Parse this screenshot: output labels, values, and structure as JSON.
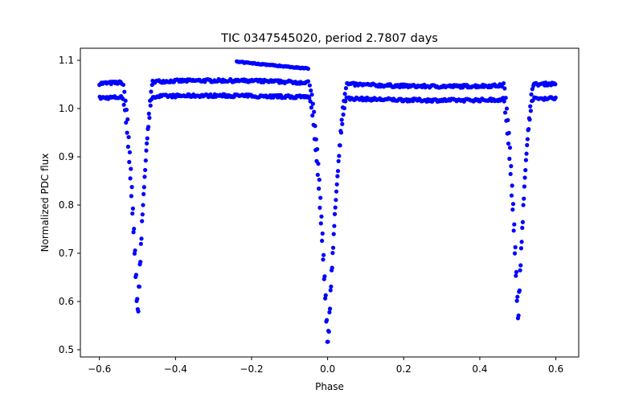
{
  "chart_data": {
    "type": "scatter",
    "title": "TIC 0347545020, period 2.7807 days",
    "xlabel": "Phase",
    "ylabel": "Normalized PDC flux",
    "xlim": [
      -0.65,
      0.66
    ],
    "ylim": [
      0.485,
      1.125
    ],
    "xticks": [
      -0.6,
      -0.4,
      -0.2,
      0.0,
      0.2,
      0.4,
      0.6
    ],
    "xtick_labels": [
      "−0.6",
      "−0.4",
      "−0.2",
      "0.0",
      "0.2",
      "0.4",
      "0.6"
    ],
    "yticks": [
      0.5,
      0.6,
      0.7,
      0.8,
      0.9,
      1.0,
      1.1
    ],
    "ytick_labels": [
      "0.5",
      "0.6",
      "0.7",
      "0.8",
      "0.9",
      "1.0",
      "1.1"
    ],
    "grid": false,
    "legend": "none",
    "marker_color": "#0000ff",
    "phase_range": [
      -0.6,
      0.6
    ],
    "upper_baseline": 1.052,
    "lower_baseline": 1.022,
    "upper_arc_start": 1.097,
    "upper_arc_end": 1.082,
    "eclipses": [
      {
        "center": -0.5,
        "depth_min": 0.565,
        "half_width": 0.04
      },
      {
        "center": 0.0,
        "depth_min": 0.502,
        "half_width": 0.05
      },
      {
        "center": 0.5,
        "depth_min": 0.563,
        "half_width": 0.04
      }
    ]
  }
}
